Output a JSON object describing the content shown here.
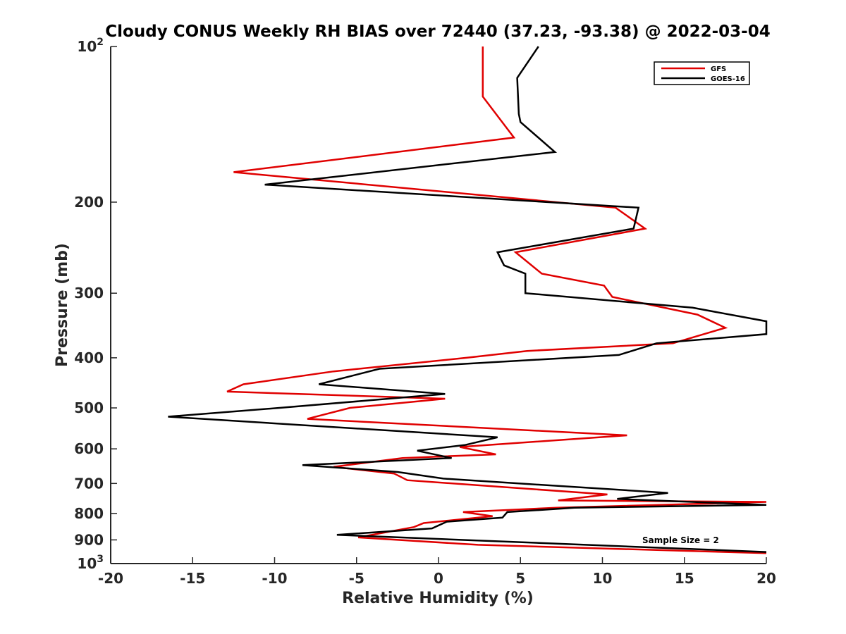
{
  "chart_data": {
    "type": "line",
    "title": "Cloudy CONUS Weekly RH BIAS over 72440 (37.23, -93.38) @ 2022-03-04",
    "xlabel": "Relative Humidity (%)",
    "ylabel": "Pressure (mb)",
    "xlim": [
      -20,
      20
    ],
    "ylim": [
      100,
      1000
    ],
    "yscale": "log",
    "y_reversed": true,
    "grid": false,
    "legend_position": "top-right",
    "x_ticks": [
      -20,
      -15,
      -10,
      -5,
      0,
      5,
      10,
      15,
      20
    ],
    "x_tick_labels": [
      "-20",
      "-15",
      "-10",
      "-5",
      "0",
      "5",
      "10",
      "15",
      "20"
    ],
    "y_ticks": [
      100,
      200,
      300,
      400,
      500,
      600,
      700,
      800,
      900,
      1000
    ],
    "y_tick_labels": [
      {
        "base": "10",
        "exp": "2"
      },
      {
        "base": "200",
        "exp": ""
      },
      {
        "base": "300",
        "exp": ""
      },
      {
        "base": "400",
        "exp": ""
      },
      {
        "base": "500",
        "exp": ""
      },
      {
        "base": "600",
        "exp": ""
      },
      {
        "base": "700",
        "exp": ""
      },
      {
        "base": "800",
        "exp": ""
      },
      {
        "base": "900",
        "exp": ""
      },
      {
        "base": "10",
        "exp": "3"
      }
    ],
    "annotation": "Sample Size = 2",
    "series": [
      {
        "name": "GFS",
        "color": "#e00000",
        "points": [
          [
            2.7,
            100
          ],
          [
            2.7,
            125
          ],
          [
            4.6,
            150
          ],
          [
            -12.5,
            175
          ],
          [
            10.8,
            205
          ],
          [
            12.6,
            225
          ],
          [
            4.7,
            250
          ],
          [
            6.3,
            275
          ],
          [
            10.1,
            290
          ],
          [
            10.6,
            305
          ],
          [
            15.8,
            330
          ],
          [
            17.5,
            350
          ],
          [
            14.3,
            375
          ],
          [
            5.4,
            388
          ],
          [
            1.7,
            400
          ],
          [
            -6.4,
            425
          ],
          [
            -11.9,
            450
          ],
          [
            -12.9,
            465
          ],
          [
            0.4,
            480
          ],
          [
            -5.4,
            500
          ],
          [
            -8.0,
            525
          ],
          [
            11.5,
            565
          ],
          [
            1.3,
            595
          ],
          [
            3.5,
            615
          ],
          [
            -2.2,
            625
          ],
          [
            -6.4,
            650
          ],
          [
            -2.7,
            670
          ],
          [
            -1.9,
            690
          ],
          [
            10.3,
            735
          ],
          [
            7.3,
            755
          ],
          [
            20.0,
            760
          ],
          [
            7.2,
            780
          ],
          [
            1.5,
            795
          ],
          [
            3.3,
            810
          ],
          [
            -0.9,
            835
          ],
          [
            -1.5,
            850
          ],
          [
            -4.9,
            890
          ],
          [
            2.4,
            920
          ],
          [
            20.0,
            955
          ]
        ]
      },
      {
        "name": "GOES-16",
        "color": "#000000",
        "points": [
          [
            6.1,
            100
          ],
          [
            4.8,
            115
          ],
          [
            4.9,
            135
          ],
          [
            5.0,
            140
          ],
          [
            7.1,
            160
          ],
          [
            -10.6,
            185
          ],
          [
            12.2,
            205
          ],
          [
            11.9,
            225
          ],
          [
            3.6,
            250
          ],
          [
            4.0,
            265
          ],
          [
            5.3,
            275
          ],
          [
            5.3,
            300
          ],
          [
            15.5,
            320
          ],
          [
            20.0,
            340
          ],
          [
            20.0,
            360
          ],
          [
            13.3,
            375
          ],
          [
            11.0,
            395
          ],
          [
            -3.6,
            420
          ],
          [
            -7.3,
            450
          ],
          [
            0.4,
            470
          ],
          [
            -9.7,
            500
          ],
          [
            -16.5,
            520
          ],
          [
            3.6,
            570
          ],
          [
            1.6,
            590
          ],
          [
            -1.3,
            605
          ],
          [
            0.8,
            625
          ],
          [
            -8.3,
            645
          ],
          [
            -2.5,
            665
          ],
          [
            0.3,
            685
          ],
          [
            14.0,
            730
          ],
          [
            10.9,
            750
          ],
          [
            20.0,
            770
          ],
          [
            8.3,
            780
          ],
          [
            4.2,
            795
          ],
          [
            3.9,
            815
          ],
          [
            0.5,
            830
          ],
          [
            -0.4,
            855
          ],
          [
            -6.2,
            880
          ],
          [
            20.0,
            950
          ]
        ]
      }
    ]
  }
}
